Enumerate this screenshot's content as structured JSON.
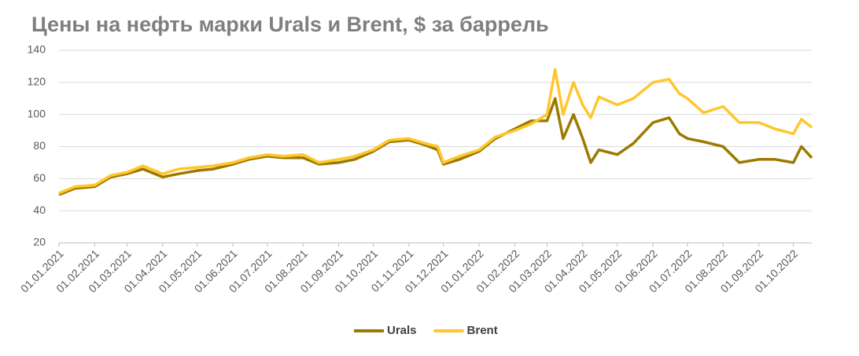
{
  "chart_data": {
    "type": "line",
    "title": "Цены на нефть марки Urals и Brent, $ за баррель",
    "x": [
      "01.01.2021",
      "15.01.2021",
      "01.02.2021",
      "15.02.2021",
      "01.03.2021",
      "15.03.2021",
      "01.04.2021",
      "15.04.2021",
      "01.05.2021",
      "15.05.2021",
      "01.06.2021",
      "15.06.2021",
      "01.07.2021",
      "15.07.2021",
      "01.08.2021",
      "15.08.2021",
      "01.09.2021",
      "15.09.2021",
      "01.10.2021",
      "15.10.2021",
      "01.11.2021",
      "15.11.2021",
      "26.11.2021",
      "01.12.2021",
      "15.12.2021",
      "01.01.2022",
      "15.01.2022",
      "01.02.2022",
      "15.02.2022",
      "01.03.2022",
      "08.03.2022",
      "15.03.2022",
      "24.03.2022",
      "01.04.2022",
      "08.04.2022",
      "15.04.2022",
      "01.05.2022",
      "15.05.2022",
      "01.06.2022",
      "15.06.2022",
      "24.06.2022",
      "01.07.2022",
      "15.07.2022",
      "01.08.2022",
      "15.08.2022",
      "01.09.2022",
      "15.09.2022",
      "01.10.2022",
      "08.10.2022",
      "17.10.2022"
    ],
    "series": [
      {
        "name": "Urals",
        "color": "#9c7a00",
        "values": [
          50,
          54,
          55,
          61,
          63,
          66,
          61,
          63,
          65,
          66,
          69,
          72,
          74,
          73,
          73,
          69,
          70,
          72,
          77,
          83,
          84,
          81,
          78,
          69,
          72,
          77,
          85,
          91,
          96,
          96,
          110,
          85,
          100,
          85,
          70,
          78,
          75,
          82,
          95,
          98,
          88,
          85,
          83,
          80,
          70,
          72,
          72,
          70,
          80,
          73
        ]
      },
      {
        "name": "Brent",
        "color": "#ffc72c",
        "values": [
          51,
          55,
          56,
          62,
          64,
          68,
          63,
          66,
          67,
          68,
          70,
          73,
          75,
          74,
          75,
          70,
          72,
          74,
          78,
          84,
          85,
          82,
          80,
          70,
          74,
          78,
          86,
          90,
          94,
          100,
          128,
          100,
          120,
          106,
          98,
          111,
          106,
          110,
          120,
          122,
          113,
          110,
          101,
          105,
          95,
          95,
          91,
          88,
          97,
          92
        ]
      }
    ],
    "xlim": [
      "01.01.2021",
      "17.10.2022"
    ],
    "xticks": [
      "01.01.2021",
      "01.02.2021",
      "01.03.2021",
      "01.04.2021",
      "01.05.2021",
      "01.06.2021",
      "01.07.2021",
      "01.08.2021",
      "01.09.2021",
      "01.10.2021",
      "01.11.2021",
      "01.12.2021",
      "01.01.2022",
      "01.02.2022",
      "01.03.2022",
      "01.04.2022",
      "01.05.2022",
      "01.06.2022",
      "01.07.2022",
      "01.08.2022",
      "01.09.2022",
      "01.10.2022"
    ],
    "ylim": [
      20,
      140
    ],
    "yticks": [
      20,
      40,
      60,
      80,
      100,
      120,
      140
    ],
    "grid": true,
    "legend": "bottom"
  }
}
